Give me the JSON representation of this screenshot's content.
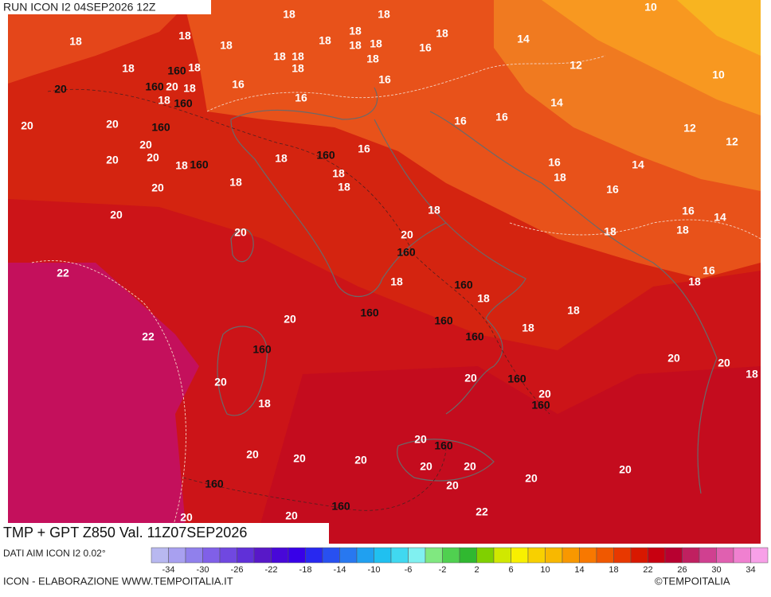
{
  "header": {
    "run": "RUN ICON I2 04SEP2026 12Z"
  },
  "footer": {
    "title": "TMP + GPT Z850 Val. 11Z07SEP2026",
    "source": "DATI AIM ICON I2 0.02°",
    "credit": "ICON - ELABORAZIONE WWW.TEMPOITALIA.IT",
    "copyright": "©TEMPOITALIA"
  },
  "colorbar": {
    "colors": [
      "#b8b8f0",
      "#a8a0f0",
      "#9080ec",
      "#8060e8",
      "#7048e0",
      "#6030d8",
      "#5818c8",
      "#4808d8",
      "#3800e8",
      "#2828f0",
      "#2850f0",
      "#2878f0",
      "#20a0f0",
      "#20c0f0",
      "#40d8f0",
      "#80f0f0",
      "#80e880",
      "#50d050",
      "#30b830",
      "#80d000",
      "#d0e800",
      "#f8f000",
      "#f8d000",
      "#f8b800",
      "#f89800",
      "#f87800",
      "#f05800",
      "#e83800",
      "#d81800",
      "#c80010",
      "#b80030",
      "#c02060",
      "#d04090",
      "#e060b0",
      "#f080d0",
      "#f8a0e8"
    ],
    "labels": [
      -34,
      -30,
      -26,
      -22,
      -18,
      -14,
      -10,
      -6,
      -2,
      2,
      6,
      10,
      14,
      18,
      22,
      26,
      30,
      34
    ]
  },
  "map": {
    "labels": [
      "18",
      "18",
      "18",
      "18",
      "18",
      "18",
      "18",
      "18",
      "18",
      "18",
      "18",
      "18",
      "18",
      "18",
      "18",
      "18",
      "20",
      "18",
      "14",
      "16",
      "16",
      "16",
      "16",
      "18",
      "10",
      "12",
      "10",
      "14",
      "16",
      "16",
      "12",
      "12",
      "20",
      "20",
      "20",
      "20",
      "20",
      "18",
      "16",
      "18",
      "18",
      "18",
      "18",
      "20",
      "16",
      "18",
      "14",
      "16",
      "20",
      "18",
      "16",
      "14",
      "18",
      "18",
      "20",
      "20",
      "16",
      "18",
      "22",
      "18",
      "18",
      "18",
      "18",
      "20",
      "22",
      "20",
      "20",
      "18",
      "20",
      "20",
      "20",
      "18",
      "20",
      "20",
      "20",
      "20",
      "20",
      "20",
      "20",
      "20",
      "20",
      "20",
      "20",
      "22",
      "20",
      "160",
      "160",
      "160",
      "160",
      "160",
      "160",
      "160",
      "160",
      "160",
      "160",
      "160",
      "160",
      "160",
      "160",
      "160",
      "160",
      "160",
      "160"
    ]
  }
}
